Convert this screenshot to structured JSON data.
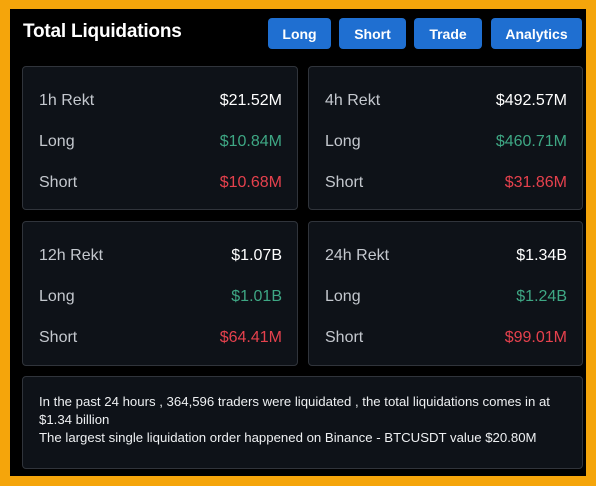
{
  "header": {
    "title": "Total Liquidations",
    "buttons": {
      "long": "Long",
      "short": "Short",
      "trade": "Trade",
      "analytics": "Analytics"
    }
  },
  "cards": [
    {
      "period": "1h Rekt",
      "total": "$21.52M",
      "long_label": "Long",
      "long": "$10.84M",
      "short_label": "Short",
      "short": "$10.68M"
    },
    {
      "period": "4h Rekt",
      "total": "$492.57M",
      "long_label": "Long",
      "long": "$460.71M",
      "short_label": "Short",
      "short": "$31.86M"
    },
    {
      "period": "12h Rekt",
      "total": "$1.07B",
      "long_label": "Long",
      "long": "$1.01B",
      "short_label": "Short",
      "short": "$64.41M"
    },
    {
      "period": "24h Rekt",
      "total": "$1.34B",
      "long_label": "Long",
      "long": "$1.24B",
      "short_label": "Short",
      "short": "$99.01M"
    }
  ],
  "summary": {
    "line1": "In the past 24 hours , 364,596 traders were liquidated , the total liquidations comes in at $1.34 billion",
    "line2": "The largest single liquidation order happened on Binance - BTCUSDT value $20.80M"
  },
  "colors": {
    "frame": "#f5a50b",
    "button": "#1f6fd1",
    "long": "#3ea784",
    "short": "#e5414d"
  }
}
